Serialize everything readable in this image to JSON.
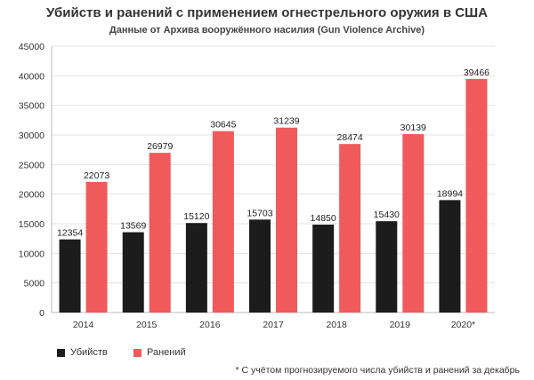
{
  "header": {
    "title": "Убийств и ранений с применением огнестрельного оружия в США",
    "subtitle": "Данные от Архива вооружённого насилия (Gun Violence Archive)"
  },
  "legend": {
    "killed": "Убийств",
    "injured": "Ранений"
  },
  "footnote": "* С учётом прогнозируемого числа убийств и ранений за декабрь",
  "colors": {
    "killed": "#1c1c1c",
    "injured": "#f05a5a",
    "grid": "#e3e3e3",
    "axis": "#bbbbbb"
  },
  "chart_data": {
    "type": "bar",
    "categories": [
      "2014",
      "2015",
      "2016",
      "2017",
      "2018",
      "2019",
      "2020*"
    ],
    "series": [
      {
        "name": "Убийств",
        "values": [
          12354,
          13569,
          15120,
          15703,
          14850,
          15430,
          18994
        ]
      },
      {
        "name": "Ранений",
        "values": [
          22073,
          26979,
          30645,
          31239,
          28474,
          30139,
          39466
        ]
      }
    ],
    "ylim": [
      0,
      45000
    ],
    "yticks": [
      0,
      5000,
      10000,
      15000,
      20000,
      25000,
      30000,
      35000,
      40000,
      45000
    ],
    "grid": true,
    "legend_position": "bottom-left"
  }
}
